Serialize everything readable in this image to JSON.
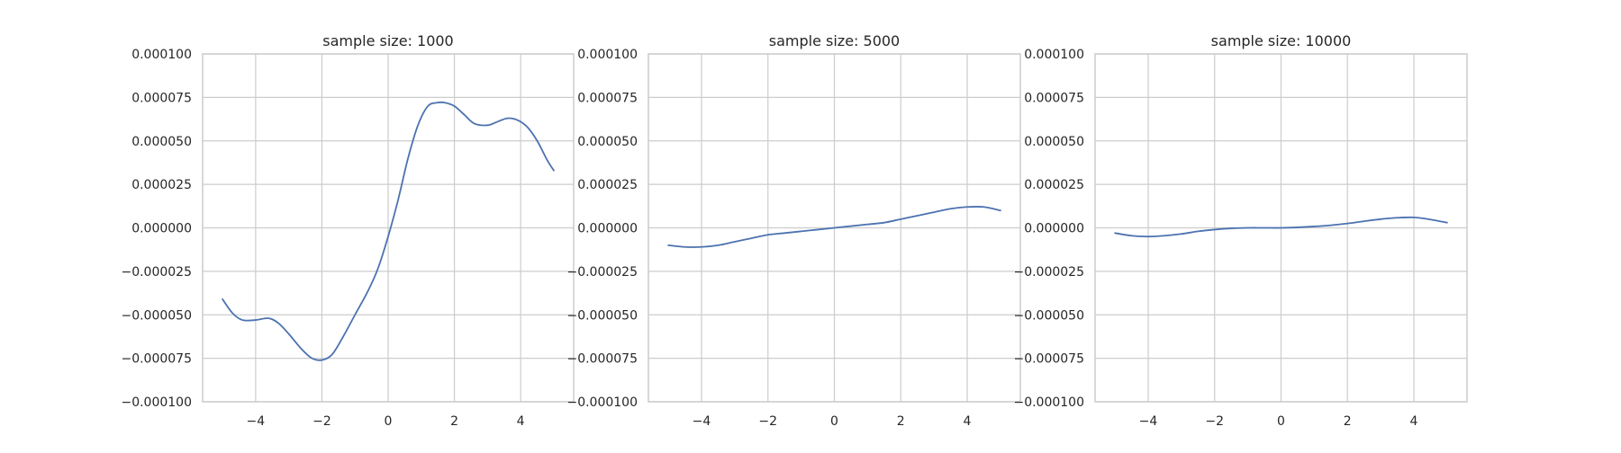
{
  "figure": {
    "background": "#ffffff",
    "grid_color": "#cccccc",
    "line_color": "#4c72b0"
  },
  "chart_data": [
    {
      "type": "line",
      "title": "sample size: 1000",
      "xlabel": "",
      "ylabel": "",
      "xlim": [
        -5.6,
        5.6
      ],
      "ylim": [
        -0.0001,
        0.0001
      ],
      "grid": true,
      "xticks": [
        -4,
        -2,
        0,
        2,
        4
      ],
      "xtick_labels": [
        "−4",
        "−2",
        "0",
        "2",
        "4"
      ],
      "yticks": [
        -0.0001,
        -7.5e-05,
        -5e-05,
        -2.5e-05,
        0,
        2.5e-05,
        5e-05,
        7.5e-05,
        0.0001
      ],
      "ytick_labels": [
        "−0.000100",
        "−0.000075",
        "−0.000050",
        "−0.000025",
        "0.000000",
        "0.000025",
        "0.000050",
        "0.000075",
        "0.000100"
      ],
      "series": [
        {
          "x": [
            -5.0,
            -4.7,
            -4.4,
            -4.0,
            -3.6,
            -3.3,
            -3.0,
            -2.6,
            -2.3,
            -2.0,
            -1.7,
            -1.4,
            -1.0,
            -0.6,
            -0.3,
            0.0,
            0.3,
            0.6,
            0.9,
            1.2,
            1.5,
            1.7,
            2.0,
            2.3,
            2.6,
            3.0,
            3.3,
            3.6,
            3.9,
            4.2,
            4.5,
            4.8,
            5.0
          ],
          "y": [
            -4.1e-05,
            -4.9e-05,
            -5.3e-05,
            -5.3e-05,
            -5.2e-05,
            -5.5e-05,
            -6.1e-05,
            -7e-05,
            -7.5e-05,
            -7.6e-05,
            -7.3e-05,
            -6.4e-05,
            -5e-05,
            -3.6e-05,
            -2.3e-05,
            -5e-06,
            1.6e-05,
            4e-05,
            5.9e-05,
            7e-05,
            7.2e-05,
            7.2e-05,
            7e-05,
            6.5e-05,
            6e-05,
            5.9e-05,
            6.1e-05,
            6.3e-05,
            6.2e-05,
            5.8e-05,
            5e-05,
            3.9e-05,
            3.3e-05
          ]
        }
      ]
    },
    {
      "type": "line",
      "title": "sample size: 5000",
      "xlabel": "",
      "ylabel": "",
      "xlim": [
        -5.6,
        5.6
      ],
      "ylim": [
        -0.0001,
        0.0001
      ],
      "grid": true,
      "xticks": [
        -4,
        -2,
        0,
        2,
        4
      ],
      "xtick_labels": [
        "−4",
        "−2",
        "0",
        "2",
        "4"
      ],
      "yticks": [
        -0.0001,
        -7.5e-05,
        -5e-05,
        -2.5e-05,
        0,
        2.5e-05,
        5e-05,
        7.5e-05,
        0.0001
      ],
      "ytick_labels": [
        "−0.000100",
        "−0.000075",
        "−0.000050",
        "−0.000025",
        "0.000000",
        "0.000025",
        "0.000050",
        "0.000075",
        "0.000100"
      ],
      "series": [
        {
          "x": [
            -5.0,
            -4.5,
            -4.0,
            -3.5,
            -3.0,
            -2.5,
            -2.0,
            -1.5,
            -1.0,
            -0.5,
            0.0,
            0.5,
            1.0,
            1.5,
            2.0,
            2.5,
            3.0,
            3.5,
            4.0,
            4.5,
            5.0
          ],
          "y": [
            -1e-05,
            -1.1e-05,
            -1.1e-05,
            -1e-05,
            -8e-06,
            -6e-06,
            -4e-06,
            -3e-06,
            -2e-06,
            -1e-06,
            0.0,
            1e-06,
            2e-06,
            3e-06,
            5e-06,
            7e-06,
            9e-06,
            1.1e-05,
            1.2e-05,
            1.2e-05,
            1e-05
          ]
        }
      ]
    },
    {
      "type": "line",
      "title": "sample size: 10000",
      "xlabel": "",
      "ylabel": "",
      "xlim": [
        -5.6,
        5.6
      ],
      "ylim": [
        -0.0001,
        0.0001
      ],
      "grid": true,
      "xticks": [
        -4,
        -2,
        0,
        2,
        4
      ],
      "xtick_labels": [
        "−4",
        "−2",
        "0",
        "2",
        "4"
      ],
      "yticks": [
        -0.0001,
        -7.5e-05,
        -5e-05,
        -2.5e-05,
        0,
        2.5e-05,
        5e-05,
        7.5e-05,
        0.0001
      ],
      "ytick_labels": [
        "−0.000100",
        "−0.000075",
        "−0.000050",
        "−0.000025",
        "0.000000",
        "0.000025",
        "0.000050",
        "0.000075",
        "0.000100"
      ],
      "series": [
        {
          "x": [
            -5.0,
            -4.5,
            -4.0,
            -3.5,
            -3.0,
            -2.5,
            -2.0,
            -1.5,
            -1.0,
            -0.5,
            0.0,
            0.5,
            1.0,
            1.5,
            2.0,
            2.5,
            3.0,
            3.5,
            4.0,
            4.5,
            5.0
          ],
          "y": [
            -3e-06,
            -4.5e-06,
            -5e-06,
            -4.5e-06,
            -3.5e-06,
            -2e-06,
            -1e-06,
            -3e-07,
            0.0,
            0.0,
            0.0,
            3e-07,
            8e-07,
            1.5e-06,
            2.5e-06,
            3.8e-06,
            5e-06,
            5.8e-06,
            6e-06,
            4.8e-06,
            3e-06
          ]
        }
      ]
    }
  ]
}
